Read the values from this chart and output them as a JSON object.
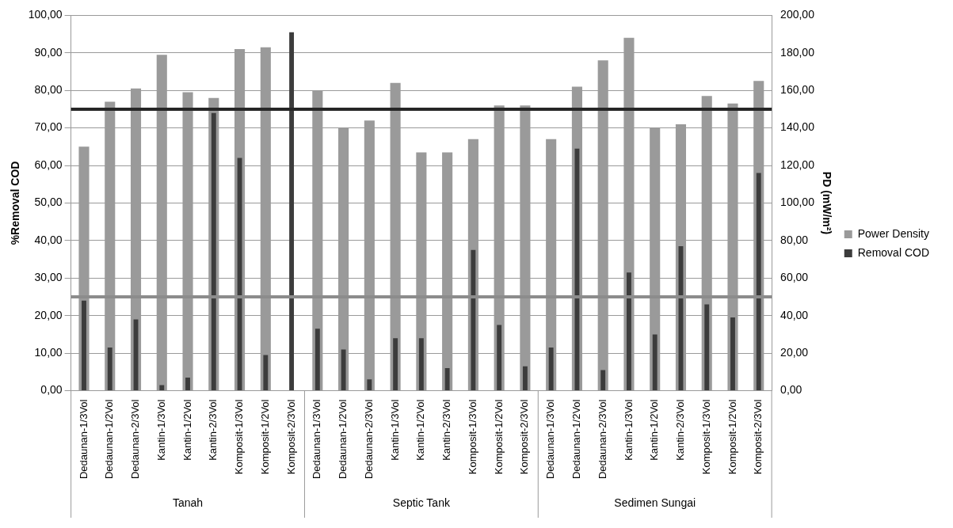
{
  "chart_data": {
    "type": "bar",
    "ylabel": "%Removal COD",
    "y2label": "PD (mW/m²)",
    "categories": [
      "Dedaunan-1/3Vol",
      "Dedaunan-1/2Vol",
      "Dedaunan-2/3Vol",
      "Kantin-1/3Vol",
      "Kantin-1/2Vol",
      "Kantin-2/3Vol",
      "Komposit-1/3Vol",
      "Komposit-1/2Vol",
      "Komposit-2/3Vol",
      "Dedaunan-1/3Vol",
      "Dedaunan-1/2Vol",
      "Dedaunan-2/3Vol",
      "Kantin-1/3Vol",
      "Kantin-1/2Vol",
      "Kantin-2/3Vol",
      "Komposit-1/3Vol",
      "Komposit-1/2Vol",
      "Komposit-2/3Vol",
      "Dedaunan-1/3Vol",
      "Dedaunan-1/2Vol",
      "Dedaunan-2/3Vol",
      "Kantin-1/3Vol",
      "Kantin-1/2Vol",
      "Kantin-2/3Vol",
      "Komposit-1/3Vol",
      "Komposit-1/2Vol",
      "Komposit-2/3Vol"
    ],
    "series": [
      {
        "name": "Power Density",
        "color": "#9a9a9a",
        "axis": "y2",
        "values": [
          130,
          154,
          161,
          179,
          159,
          156,
          182,
          183,
          null,
          160,
          140,
          144,
          164,
          127,
          127,
          134,
          152,
          152,
          134,
          162,
          176,
          188,
          140,
          142,
          157,
          153,
          165
        ]
      },
      {
        "name": "Removal COD",
        "color": "#3c3c3c",
        "values": [
          24,
          11.5,
          19,
          1.5,
          3.5,
          74,
          62,
          9.5,
          95.5,
          16.5,
          11,
          3,
          14,
          14,
          6,
          37.5,
          17.5,
          6.5,
          11.5,
          64.5,
          5.5,
          31.5,
          15,
          38.5,
          23,
          19.5,
          58
        ]
      }
    ],
    "ylim": [
      0,
      100
    ],
    "yticks": [
      {
        "value": 0,
        "label": "0,00"
      },
      {
        "value": 10,
        "label": "10,00"
      },
      {
        "value": 20,
        "label": "20,00"
      },
      {
        "value": 30,
        "label": "30,00"
      },
      {
        "value": 40,
        "label": "40,00"
      },
      {
        "value": 50,
        "label": "50,00"
      },
      {
        "value": 60,
        "label": "60,00"
      },
      {
        "value": 70,
        "label": "70,00"
      },
      {
        "value": 80,
        "label": "80,00"
      },
      {
        "value": 90,
        "label": "90,00"
      },
      {
        "value": 100,
        "label": "100,00"
      }
    ],
    "y2lim": [
      0,
      200
    ],
    "y2ticks": [
      {
        "value": 0,
        "label": "0,00"
      },
      {
        "value": 20,
        "label": "20,00"
      },
      {
        "value": 40,
        "label": "40,00"
      },
      {
        "value": 60,
        "label": "60,00"
      },
      {
        "value": 80,
        "label": "80,00"
      },
      {
        "value": 100,
        "label": "100,00"
      },
      {
        "value": 120,
        "label": "120,00"
      },
      {
        "value": 140,
        "label": "140,00"
      },
      {
        "value": 160,
        "label": "160,00"
      },
      {
        "value": 180,
        "label": "180,00"
      },
      {
        "value": 200,
        "label": "200,00"
      }
    ],
    "ref_lines": [
      {
        "axis": "y",
        "value": 75,
        "color": "#262626"
      },
      {
        "axis": "y",
        "value": 25,
        "color": "#8c8c8c"
      }
    ],
    "annotations": [
      "Tanah",
      "Septic Tank",
      "Sedimen Sungai"
    ],
    "grid": "y",
    "legend": "right"
  }
}
